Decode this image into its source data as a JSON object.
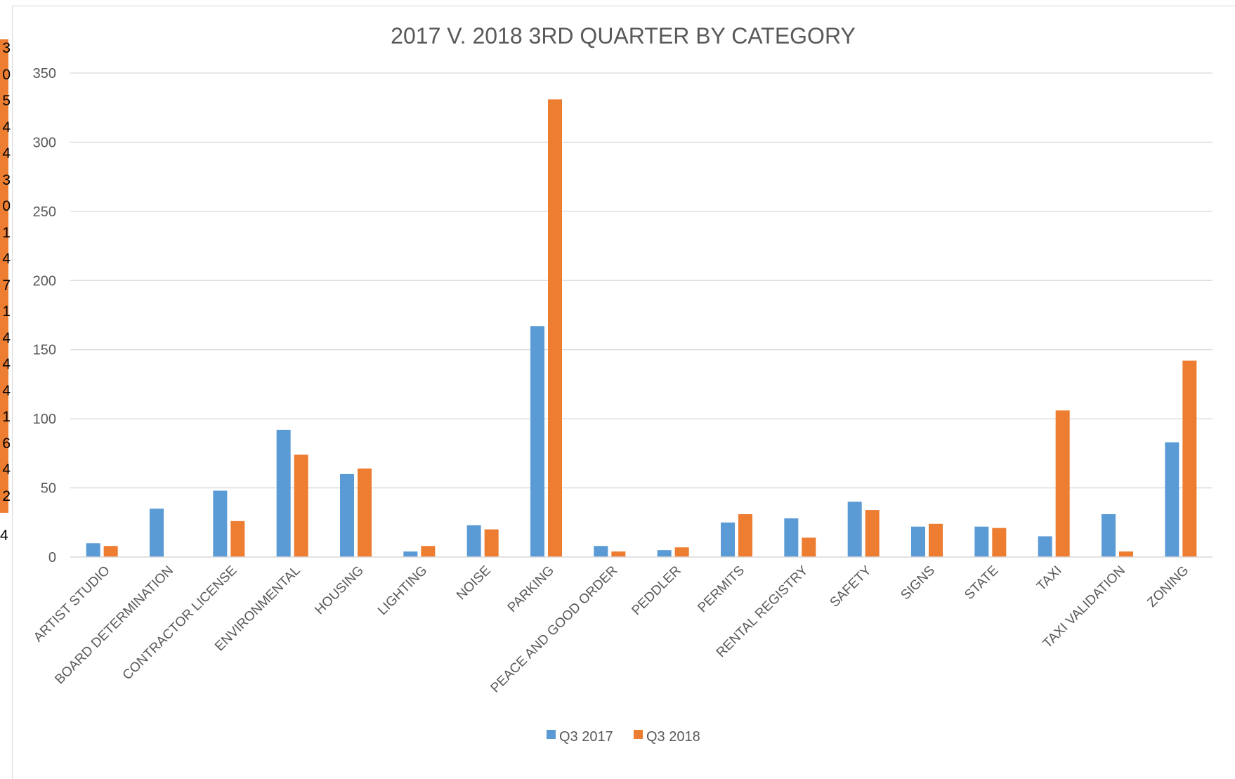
{
  "side_strip": {
    "digits": [
      "3",
      "0",
      "5",
      "4",
      "4",
      "3",
      "0",
      "1",
      "4",
      "7",
      "1",
      "4",
      "4",
      "4",
      "1",
      "6",
      "4",
      "2"
    ],
    "tail": "4"
  },
  "chart_data": {
    "type": "bar",
    "title": "2017 V. 2018 3RD QUARTER BY CATEGORY",
    "xlabel": "",
    "ylabel": "",
    "ylim": [
      0,
      350
    ],
    "yticks": [
      "0",
      "50",
      "100",
      "150",
      "200",
      "250",
      "300",
      "350"
    ],
    "grid": true,
    "legend_position": "bottom",
    "categories": [
      "ARTIST STUDIO",
      "BOARD DETERMINATION",
      "CONTRACTOR LICENSE",
      "ENVIRONMENTAL",
      "HOUSING",
      "LIGHTING",
      "NOISE",
      "PARKING",
      "PEACE AND GOOD ORDER",
      "PEDDLER",
      "PERMITS",
      "RENTAL REGISTRY",
      "SAFETY",
      "SIGNS",
      "STATE",
      "TAXI",
      "TAXI VALIDATION",
      "ZONING"
    ],
    "series": [
      {
        "name": "Q3 2017",
        "color": "#5B9BD5",
        "values": [
          10,
          35,
          48,
          92,
          60,
          4,
          23,
          167,
          8,
          5,
          25,
          28,
          40,
          22,
          22,
          15,
          31,
          83
        ]
      },
      {
        "name": "Q3 2018",
        "color": "#ED7D31",
        "values": [
          8,
          0,
          26,
          74,
          64,
          8,
          20,
          331,
          4,
          7,
          31,
          14,
          34,
          24,
          21,
          106,
          4,
          142
        ]
      }
    ]
  }
}
